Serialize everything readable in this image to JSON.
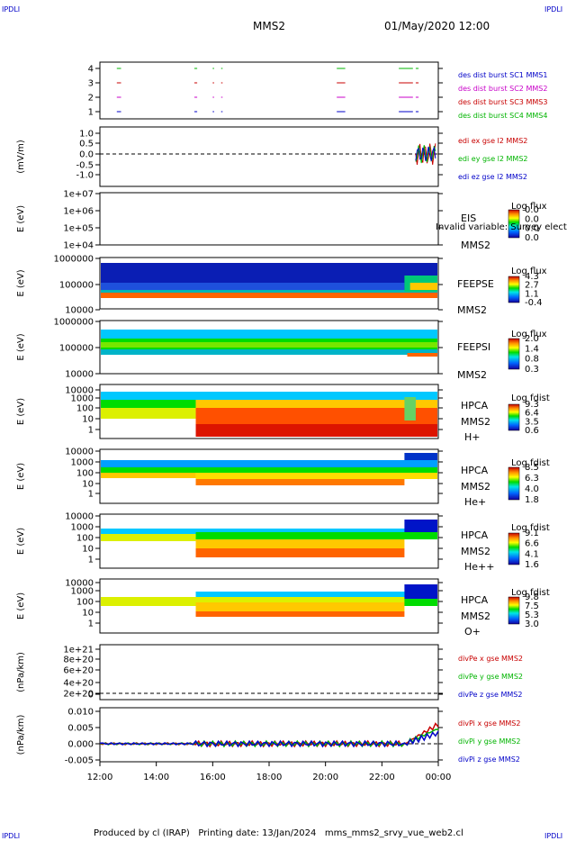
{
  "corners": {
    "tl": "IPDLI",
    "tr": "IPDLI",
    "bl": "IPDLI",
    "br": "IPDLI"
  },
  "header": {
    "spacecraft": "MMS2",
    "datetime": "01/May/2020 12:00"
  },
  "footer": {
    "text": "Produced by cl (IRAP)   Printing date: 13/Jan/2024   mms_mms2_srvy_vue_web2.cl"
  },
  "chart_data": [
    {
      "type": "line",
      "id": "burst",
      "ylabel": "",
      "yticks": [
        "4",
        "3",
        "2",
        "1"
      ],
      "legend": [
        {
          "text": "des dist burst SC1 MMS1",
          "color": "#0000c8"
        },
        {
          "text": "des dist burst SC2 MMS2",
          "color": "#c800c8"
        },
        {
          "text": "des dist burst SC3 MMS3",
          "color": "#c80000"
        },
        {
          "text": "des dist burst SC4 MMS4",
          "color": "#00b400"
        }
      ]
    },
    {
      "type": "line",
      "id": "edi",
      "ylabel": "(mV/m)",
      "yticks": [
        "1.0",
        "0.5",
        "0.0",
        "-0.5",
        "-1.0"
      ],
      "ylim": [
        -1.2,
        1.2
      ],
      "legend": [
        {
          "text": "edi ex gse l2 MMS2",
          "color": "#c80000"
        },
        {
          "text": "edi ey gse l2 MMS2",
          "color": "#00b400"
        },
        {
          "text": "edi ez gse l2 MMS2",
          "color": "#0000c8"
        }
      ]
    },
    {
      "type": "heatmap",
      "id": "eis",
      "ylabel": "E (eV)",
      "yticks": [
        "1e+07",
        "1e+06",
        "1e+05",
        "1e+04"
      ],
      "labels": [
        "EIS",
        "MMS2"
      ],
      "overlay": "Invalid variable: Survey electron total flux",
      "cbar_title": "Log flux",
      "cbar_ticks": [
        "0.0",
        "0.0",
        "0.0",
        "0.0"
      ]
    },
    {
      "type": "heatmap",
      "id": "feepse",
      "ylabel": "E (eV)",
      "yticks": [
        "1000000",
        "100000",
        "10000"
      ],
      "labels": [
        "FEEPSE",
        "MMS2"
      ],
      "cbar_title": "Log flux",
      "cbar_ticks": [
        "4.3",
        "2.7",
        "1.1",
        "-0.4"
      ]
    },
    {
      "type": "heatmap",
      "id": "feepsi",
      "ylabel": "E (eV)",
      "yticks": [
        "1000000",
        "100000",
        "10000"
      ],
      "labels": [
        "FEEPSI",
        "MMS2"
      ],
      "cbar_title": "Log flux",
      "cbar_ticks": [
        "2.0",
        "1.4",
        "0.8",
        "0.3"
      ]
    },
    {
      "type": "heatmap",
      "id": "hpca_h",
      "ylabel": "E (eV)",
      "yticks": [
        "10000",
        "1000",
        "100",
        "10",
        "1"
      ],
      "labels": [
        "HPCA",
        "MMS2",
        "H+"
      ],
      "cbar_title": "Log fdist",
      "cbar_ticks": [
        "9.3",
        "6.4",
        "3.5",
        "0.6"
      ]
    },
    {
      "type": "heatmap",
      "id": "hpca_he1",
      "ylabel": "E (eV)",
      "yticks": [
        "10000",
        "1000",
        "100",
        "10",
        "1"
      ],
      "labels": [
        "HPCA",
        "MMS2",
        "He+"
      ],
      "cbar_title": "Log fdist",
      "cbar_ticks": [
        "8.5",
        "6.3",
        "4.0",
        "1.8"
      ]
    },
    {
      "type": "heatmap",
      "id": "hpca_he2",
      "ylabel": "E (eV)",
      "yticks": [
        "10000",
        "1000",
        "100",
        "10",
        "1"
      ],
      "labels": [
        "HPCA",
        "MMS2",
        "He++"
      ],
      "cbar_title": "Log fdist",
      "cbar_ticks": [
        "9.1",
        "6.6",
        "4.1",
        "1.6"
      ]
    },
    {
      "type": "heatmap",
      "id": "hpca_o",
      "ylabel": "E (eV)",
      "yticks": [
        "10000",
        "1000",
        "100",
        "10",
        "1"
      ],
      "labels": [
        "HPCA",
        "MMS2",
        "O+"
      ],
      "cbar_title": "Log fdist",
      "cbar_ticks": [
        "9.8",
        "7.5",
        "5.3",
        "3.0"
      ]
    },
    {
      "type": "line",
      "id": "divpe",
      "ylabel": "(nPa/km)",
      "yticks": [
        "1e+21",
        "8e+20",
        "6e+20",
        "4e+20",
        "2e+20",
        "0"
      ],
      "legend": [
        {
          "text": "divPe x gse MMS2",
          "color": "#c80000"
        },
        {
          "text": "divPe y gse MMS2",
          "color": "#00b400"
        },
        {
          "text": "divPe z gse MMS2",
          "color": "#0000c8"
        }
      ]
    },
    {
      "type": "line",
      "id": "divpi",
      "ylabel": "(nPa/km)",
      "yticks": [
        "0.010",
        "0.005",
        "0.000",
        "-0.005"
      ],
      "ylim": [
        -0.006,
        0.011
      ],
      "legend": [
        {
          "text": "divPi x gse MMS2",
          "color": "#c80000"
        },
        {
          "text": "divPi y gse MMS2",
          "color": "#00b400"
        },
        {
          "text": "divPi z gse MMS2",
          "color": "#0000c8"
        }
      ]
    }
  ],
  "xaxis": {
    "ticks": [
      "12:00",
      "14:00",
      "16:00",
      "18:00",
      "20:00",
      "22:00",
      "00:00"
    ]
  }
}
